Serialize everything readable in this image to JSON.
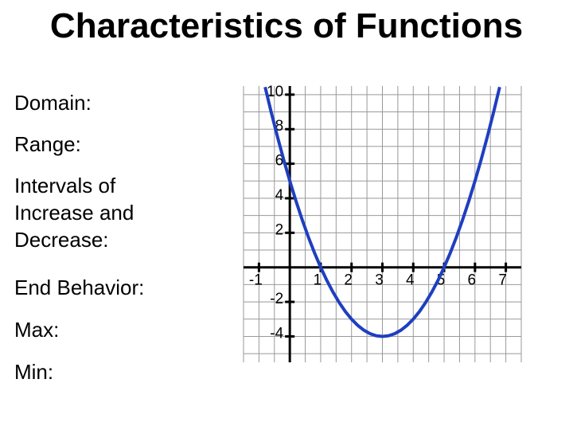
{
  "slide": {
    "title": "Characteristics of Functions",
    "prompts": [
      "Domain:",
      "Range:",
      "Intervals of Increase and Decrease:",
      "End Behavior:",
      "Max:",
      "Min:"
    ]
  },
  "chart_data": {
    "type": "line",
    "x": [
      -0.8,
      -0.6,
      -0.4,
      -0.2,
      0,
      0.2,
      0.4,
      0.6,
      0.8,
      1,
      1.2,
      1.4,
      1.6,
      1.8,
      2,
      2.2,
      2.4,
      2.6,
      2.8,
      3,
      3.2,
      3.4,
      3.6,
      3.8,
      4,
      4.2,
      4.4,
      4.6,
      4.8,
      5,
      5.2,
      5.4,
      5.6,
      5.8,
      6,
      6.2,
      6.4,
      6.6,
      6.8
    ],
    "series": [
      {
        "color": "#1f3fbf",
        "values": [
          10.44,
          8.96,
          7.56,
          6.24,
          5,
          3.84,
          2.76,
          1.76,
          0.84,
          0,
          -0.76,
          -1.44,
          -2.04,
          -2.56,
          -3,
          -3.36,
          -3.64,
          -3.84,
          -3.96,
          -4,
          -3.96,
          -3.84,
          -3.64,
          -3.36,
          -3,
          -2.56,
          -2.04,
          -1.44,
          -0.76,
          0,
          0.84,
          1.76,
          2.76,
          3.84,
          5,
          6.24,
          7.56,
          8.96,
          10.44
        ]
      }
    ],
    "xlim": [
      -1.5,
      7.5
    ],
    "ylim": [
      -5.5,
      10.5
    ],
    "xticks": [
      -1,
      1,
      2,
      3,
      4,
      5,
      6,
      7
    ],
    "yticks": [
      -4,
      -2,
      2,
      4,
      6,
      8,
      10
    ],
    "grid": true
  }
}
